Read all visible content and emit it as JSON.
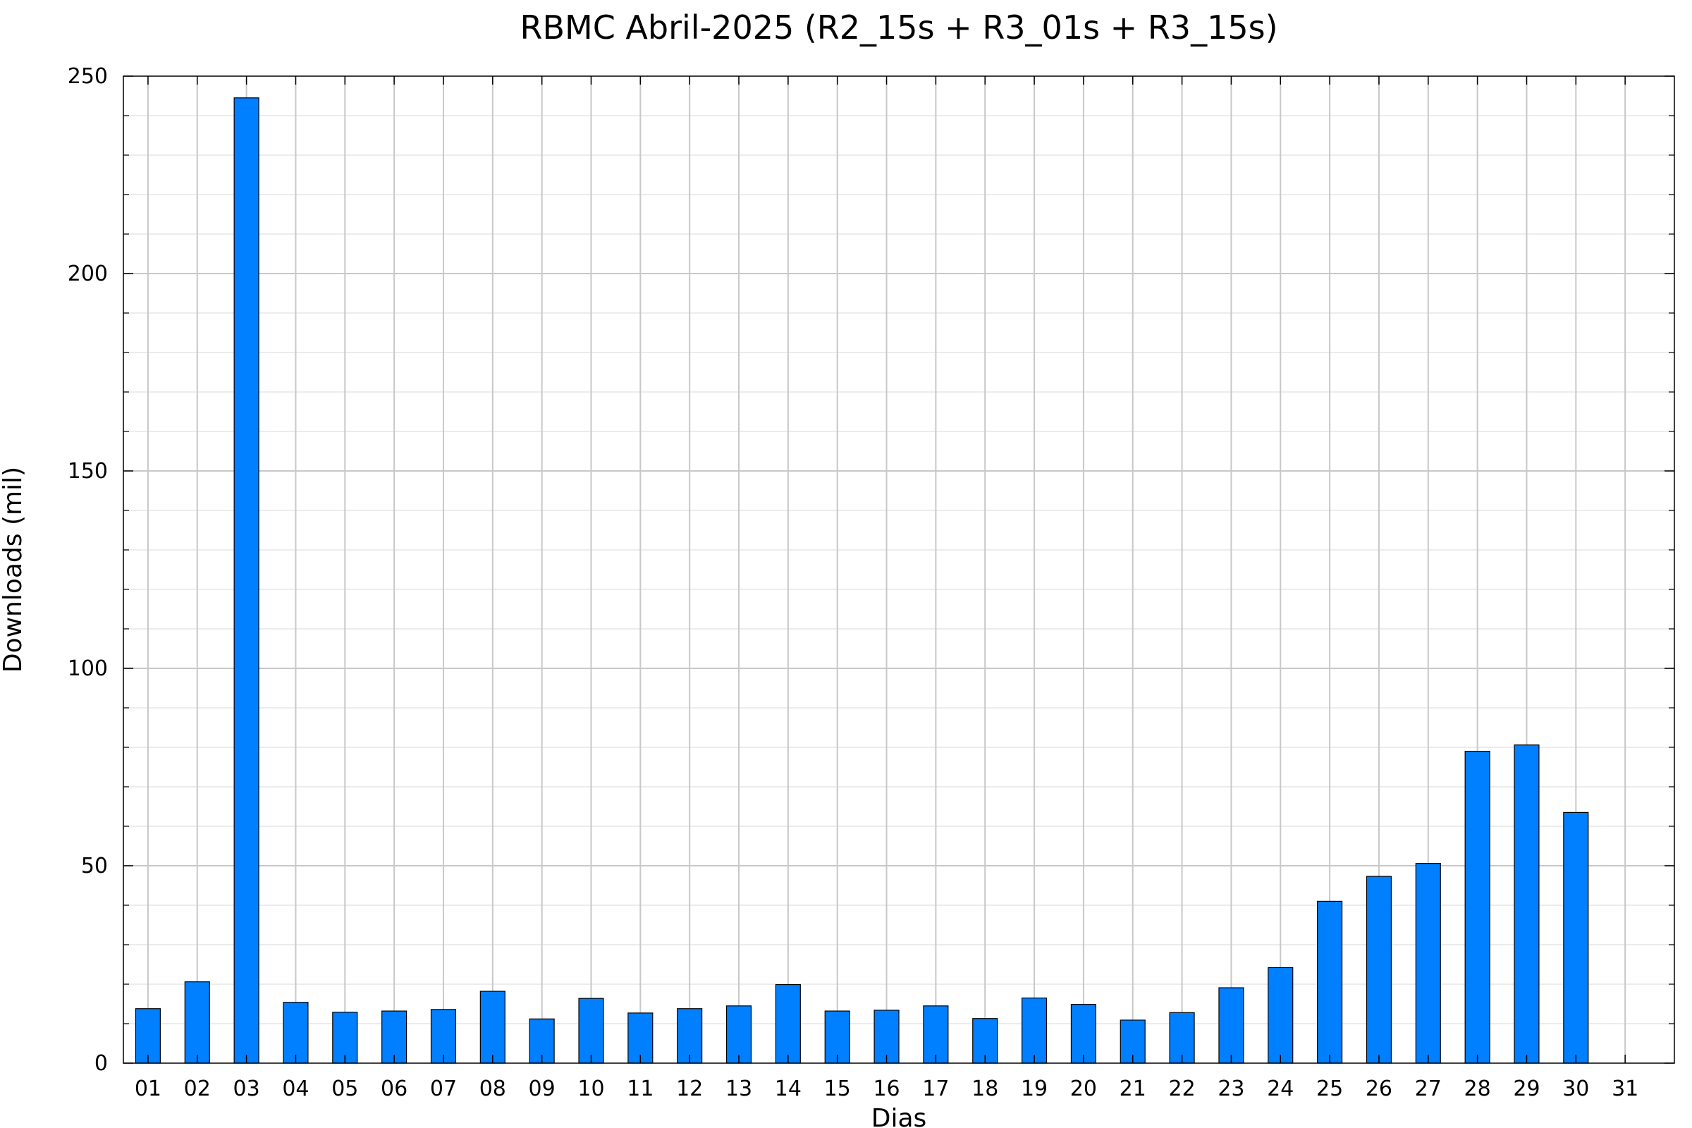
{
  "chart_data": {
    "type": "bar",
    "title": "RBMC Abril-2025 (R2_15s + R3_01s + R3_15s)",
    "xlabel": "Dias",
    "ylabel": "Downloads (mil)",
    "categories": [
      "01",
      "02",
      "03",
      "04",
      "05",
      "06",
      "07",
      "08",
      "09",
      "10",
      "11",
      "12",
      "13",
      "14",
      "15",
      "16",
      "17",
      "18",
      "19",
      "20",
      "21",
      "22",
      "23",
      "24",
      "25",
      "26",
      "27",
      "28",
      "29",
      "30",
      "31"
    ],
    "values": [
      13.8,
      20.6,
      244.5,
      15.4,
      12.9,
      13.2,
      13.6,
      18.2,
      11.2,
      16.4,
      12.7,
      13.8,
      14.5,
      19.9,
      13.2,
      13.4,
      14.5,
      11.3,
      16.5,
      14.9,
      10.9,
      12.8,
      19.1,
      24.2,
      41.0,
      47.3,
      50.6,
      79.0,
      80.6,
      63.5,
      null
    ],
    "ylim": [
      0,
      250
    ],
    "y_ticks": [
      0,
      50,
      100,
      150,
      200,
      250
    ],
    "y_minor_step": 10,
    "grid": true,
    "colors": {
      "bar_fill": "#007fff",
      "bar_stroke": "#000000",
      "grid_major": "#c8c8c8",
      "grid_minor": "#e6e6e6",
      "axis": "#000000"
    }
  }
}
